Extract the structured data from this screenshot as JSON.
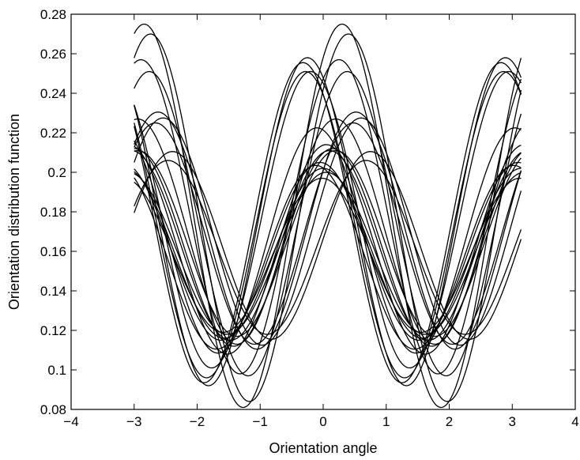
{
  "chart_data": {
    "type": "line",
    "title": "",
    "xlabel": "Orientation angle",
    "ylabel": "Orientation distribution function",
    "xlim": [
      -4,
      4
    ],
    "ylim": [
      0.08,
      0.28
    ],
    "xticks": [
      -4,
      -3,
      -2,
      -1,
      0,
      1,
      2,
      3,
      4
    ],
    "yticks": [
      0.08,
      0.1,
      0.12,
      0.14,
      0.16,
      0.18,
      0.2,
      0.22,
      0.24,
      0.26,
      0.28
    ],
    "xtick_labels": [
      "−4",
      "−3",
      "−2",
      "−1",
      "0",
      "1",
      "2",
      "3",
      "4"
    ],
    "ytick_labels": [
      "0.08",
      "0.1",
      "0.12",
      "0.14",
      "0.16",
      "0.18",
      "0.2",
      "0.22",
      "0.24",
      "0.26",
      "0.28"
    ],
    "x_range": [
      -3.0,
      3.14
    ],
    "grid": false,
    "legend": "none",
    "line_color": "#000000",
    "curve_model": "y = mean + amplitude * cos(2 * (x - phase))",
    "series": [
      {
        "mean": 0.178,
        "amplitude": 0.097,
        "phase": 0.3
      },
      {
        "mean": 0.177,
        "amplitude": 0.093,
        "phase": 0.4
      },
      {
        "mean": 0.1775,
        "amplitude": 0.0795,
        "phase": 0.25
      },
      {
        "mean": 0.174,
        "amplitude": 0.077,
        "phase": 0.38
      },
      {
        "mean": 0.175,
        "amplitude": 0.083,
        "phase": -0.25
      },
      {
        "mean": 0.1745,
        "amplitude": 0.081,
        "phase": -0.32
      },
      {
        "mean": 0.176,
        "amplitude": 0.075,
        "phase": -0.2
      },
      {
        "mean": 0.1735,
        "amplitude": 0.0775,
        "phase": -0.28
      },
      {
        "mean": 0.1705,
        "amplitude": 0.06,
        "phase": 0.52
      },
      {
        "mean": 0.17,
        "amplitude": 0.0575,
        "phase": 0.6
      },
      {
        "mean": 0.169,
        "amplitude": 0.056,
        "phase": 0.48
      },
      {
        "mean": 0.163,
        "amplitude": 0.0475,
        "phase": 0.75
      },
      {
        "mean": 0.162,
        "amplitude": 0.044,
        "phase": 0.68
      },
      {
        "mean": 0.159,
        "amplitude": 0.043,
        "phase": 0.0
      },
      {
        "mean": 0.162,
        "amplitude": 0.05,
        "phase": 0.15
      },
      {
        "mean": 0.157,
        "amplitude": 0.0465,
        "phase": -0.12
      },
      {
        "mean": 0.159,
        "amplitude": 0.041,
        "phase": 0.05
      },
      {
        "mean": 0.16,
        "amplitude": 0.045,
        "phase": -0.05
      },
      {
        "mean": 0.163,
        "amplitude": 0.048,
        "phase": 0.1
      },
      {
        "mean": 0.161,
        "amplitude": 0.053,
        "phase": 0.05
      },
      {
        "mean": 0.1655,
        "amplitude": 0.057,
        "phase": -0.1
      },
      {
        "mean": 0.164,
        "amplitude": 0.047,
        "phase": 0.2
      },
      {
        "mean": 0.17,
        "amplitude": 0.057,
        "phase": 0.2
      },
      {
        "mean": 0.158,
        "amplitude": 0.039,
        "phase": -0.02
      }
    ]
  }
}
